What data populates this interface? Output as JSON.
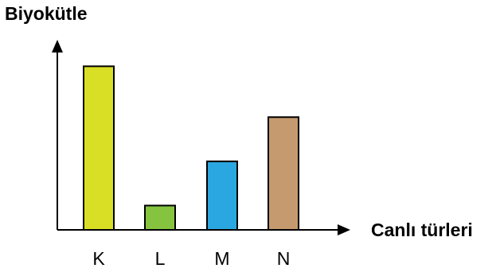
{
  "chart_data": {
    "type": "bar",
    "ylabel": "Biyokütle",
    "xlabel": "Canlı türleri",
    "categories": [
      "K",
      "L",
      "M",
      "N"
    ],
    "values": [
      7.4,
      1.1,
      3.1,
      5.1
    ],
    "ylim": [
      0,
      8.6
    ],
    "colors": [
      "#d9df24",
      "#86c440",
      "#2aa7e0",
      "#c59a6e"
    ],
    "grid": false,
    "y_ticks_shown": false
  }
}
